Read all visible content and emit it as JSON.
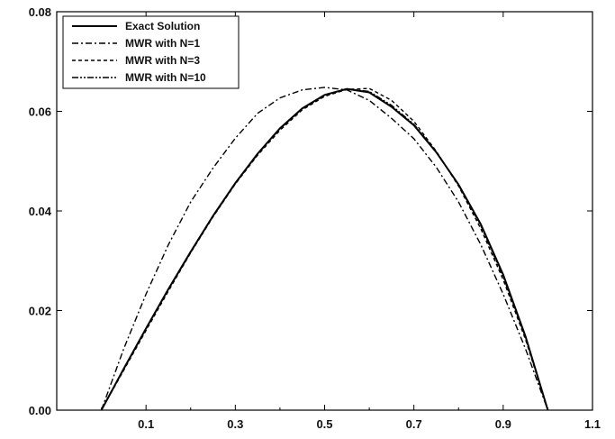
{
  "chart_data": {
    "type": "line",
    "title": "",
    "xlabel": "",
    "ylabel": "",
    "xlim": [
      -0.1,
      1.1
    ],
    "ylim": [
      0,
      0.08
    ],
    "x_ticks": [
      {
        "value": 0.1,
        "label": "0.1"
      },
      {
        "value": 0.3,
        "label": "0.3"
      },
      {
        "value": 0.5,
        "label": "0.5"
      },
      {
        "value": 0.7,
        "label": "0.7"
      },
      {
        "value": 0.9,
        "label": "0.9"
      },
      {
        "value": 1.1,
        "label": "1.1"
      }
    ],
    "y_ticks": [
      {
        "value": 0.0,
        "label": "0.00"
      },
      {
        "value": 0.02,
        "label": "0.02"
      },
      {
        "value": 0.04,
        "label": "0.04"
      },
      {
        "value": 0.06,
        "label": "0.06"
      },
      {
        "value": 0.08,
        "label": "0.08"
      }
    ],
    "grid": false,
    "legend_position": "top-left",
    "series": [
      {
        "name": "Exact Solution",
        "style": "solid",
        "color": "#000000",
        "x": [
          0.0,
          0.05,
          0.1,
          0.15,
          0.2,
          0.25,
          0.3,
          0.35,
          0.4,
          0.45,
          0.5,
          0.55,
          0.6,
          0.65,
          0.7,
          0.75,
          0.8,
          0.85,
          0.9,
          0.95,
          1.0
        ],
        "y": [
          0.0,
          0.0083,
          0.0164,
          0.0243,
          0.0318,
          0.039,
          0.0456,
          0.0515,
          0.0566,
          0.0606,
          0.0633,
          0.0645,
          0.0638,
          0.0609,
          0.0572,
          0.0518,
          0.0453,
          0.0373,
          0.0272,
          0.0148,
          0.0
        ]
      },
      {
        "name": "MWR with N=1",
        "style": "dashdot",
        "color": "#000000",
        "x": [
          0.0,
          0.05,
          0.1,
          0.15,
          0.2,
          0.25,
          0.3,
          0.35,
          0.4,
          0.45,
          0.5,
          0.55,
          0.6,
          0.65,
          0.7,
          0.75,
          0.8,
          0.85,
          0.9,
          0.95,
          1.0
        ],
        "y": [
          0.0,
          0.0123,
          0.0233,
          0.0332,
          0.0418,
          0.0486,
          0.0546,
          0.0596,
          0.0627,
          0.0643,
          0.0648,
          0.0643,
          0.0622,
          0.0586,
          0.0545,
          0.0488,
          0.0418,
          0.0332,
          0.0233,
          0.0123,
          0.0
        ]
      },
      {
        "name": "MWR with N=3",
        "style": "dashed",
        "color": "#000000",
        "x": [
          0.0,
          0.05,
          0.1,
          0.15,
          0.2,
          0.25,
          0.3,
          0.35,
          0.4,
          0.45,
          0.5,
          0.55,
          0.6,
          0.65,
          0.7,
          0.75,
          0.8,
          0.85,
          0.9,
          0.95,
          1.0
        ],
        "y": [
          0.0,
          0.008,
          0.016,
          0.0239,
          0.0316,
          0.0388,
          0.0454,
          0.0512,
          0.0562,
          0.0603,
          0.063,
          0.0644,
          0.0646,
          0.0622,
          0.058,
          0.052,
          0.045,
          0.0364,
          0.0262,
          0.0142,
          0.0
        ]
      },
      {
        "name": "MWR with N=10",
        "style": "dashdotdot",
        "color": "#000000",
        "x": [
          0.0,
          0.05,
          0.1,
          0.15,
          0.2,
          0.25,
          0.3,
          0.35,
          0.4,
          0.45,
          0.5,
          0.55,
          0.6,
          0.65,
          0.7,
          0.75,
          0.8,
          0.85,
          0.9,
          0.95,
          1.0
        ],
        "y": [
          0.0,
          0.0082,
          0.0163,
          0.0242,
          0.0317,
          0.0389,
          0.0455,
          0.0514,
          0.0565,
          0.0605,
          0.0632,
          0.0645,
          0.064,
          0.0612,
          0.0574,
          0.0519,
          0.0452,
          0.037,
          0.0268,
          0.0146,
          0.0
        ]
      }
    ]
  }
}
